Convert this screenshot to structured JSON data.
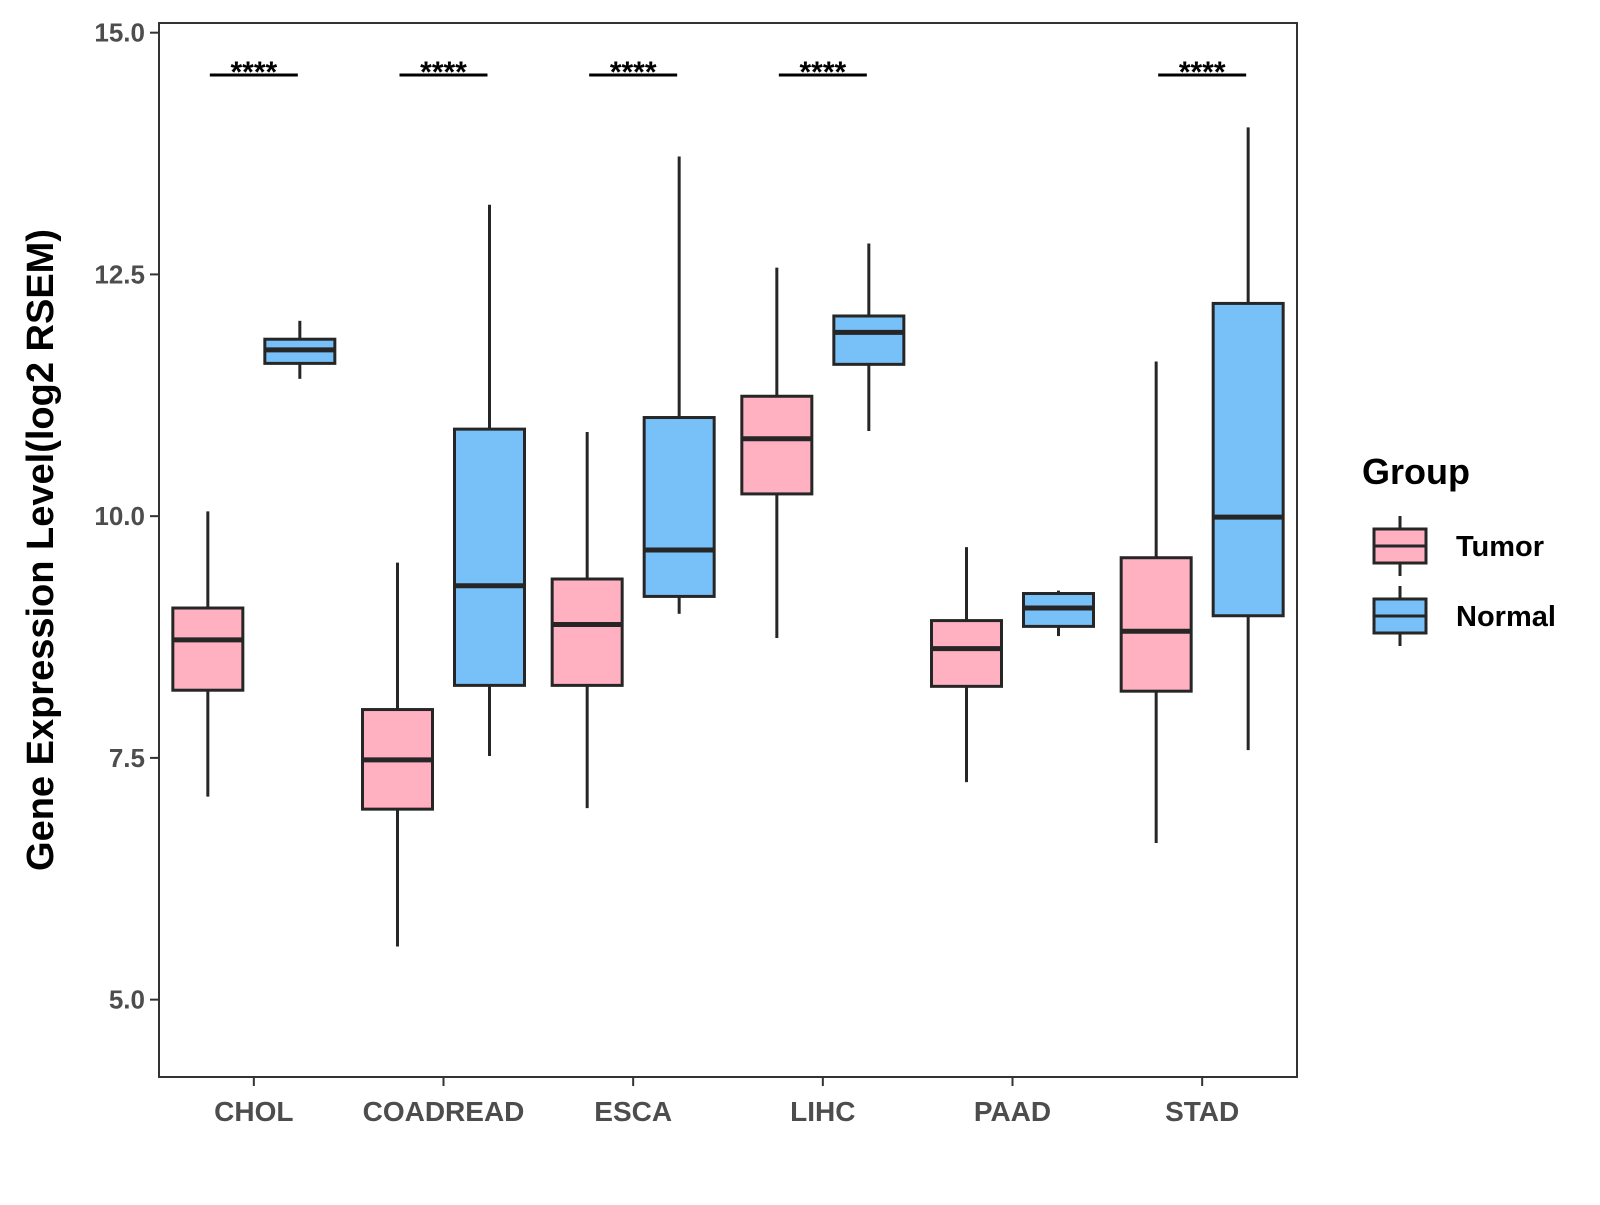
{
  "chart_data": {
    "type": "box",
    "title": "",
    "xlabel": "",
    "ylabel": "Gene Expression Level(log2 RSEM)",
    "ylim": [
      4.2,
      15.1
    ],
    "yticks": [
      5.0,
      7.5,
      10.0,
      12.5,
      15.0
    ],
    "ytick_labels": [
      "5.0",
      "7.5",
      "10.0",
      "12.5",
      "15.0"
    ],
    "grid": false,
    "categories": [
      "CHOL",
      "COADREAD",
      "ESCA",
      "LIHC",
      "PAAD",
      "STAD"
    ],
    "legend": {
      "title": "Group",
      "position": "right",
      "entries": [
        {
          "label": "Tumor",
          "color": "#FFB0C1"
        },
        {
          "label": "Normal",
          "color": "#78C0F8"
        }
      ]
    },
    "series": [
      {
        "name": "Tumor",
        "color": "#FFB0C1",
        "boxes": [
          {
            "category": "CHOL",
            "whisker_low": 7.1,
            "q1": 8.2,
            "median": 8.72,
            "q3": 9.05,
            "whisker_high": 10.05
          },
          {
            "category": "COADREAD",
            "whisker_low": 5.55,
            "q1": 6.97,
            "median": 7.48,
            "q3": 8.0,
            "whisker_high": 9.52
          },
          {
            "category": "ESCA",
            "whisker_low": 6.98,
            "q1": 8.25,
            "median": 8.88,
            "q3": 9.35,
            "whisker_high": 10.87
          },
          {
            "category": "LIHC",
            "whisker_low": 8.74,
            "q1": 10.23,
            "median": 10.8,
            "q3": 11.24,
            "whisker_high": 12.57
          },
          {
            "category": "PAAD",
            "whisker_low": 7.25,
            "q1": 8.24,
            "median": 8.63,
            "q3": 8.92,
            "whisker_high": 9.68
          },
          {
            "category": "STAD",
            "whisker_low": 6.62,
            "q1": 8.19,
            "median": 8.81,
            "q3": 9.57,
            "whisker_high": 11.6
          }
        ]
      },
      {
        "name": "Normal",
        "color": "#78C0F8",
        "boxes": [
          {
            "category": "CHOL",
            "whisker_low": 11.42,
            "q1": 11.58,
            "median": 11.72,
            "q3": 11.83,
            "whisker_high": 12.02
          },
          {
            "category": "COADREAD",
            "whisker_low": 7.52,
            "q1": 8.25,
            "median": 9.28,
            "q3": 10.9,
            "whisker_high": 13.22
          },
          {
            "category": "ESCA",
            "whisker_low": 8.99,
            "q1": 9.17,
            "median": 9.65,
            "q3": 11.02,
            "whisker_high": 13.72
          },
          {
            "category": "LIHC",
            "whisker_low": 10.88,
            "q1": 11.57,
            "median": 11.9,
            "q3": 12.07,
            "whisker_high": 12.82
          },
          {
            "category": "PAAD",
            "whisker_low": 8.76,
            "q1": 8.86,
            "median": 9.05,
            "q3": 9.2,
            "whisker_high": 9.23
          },
          {
            "category": "STAD",
            "whisker_low": 7.58,
            "q1": 8.97,
            "median": 9.99,
            "q3": 12.2,
            "whisker_high": 14.02
          }
        ]
      }
    ],
    "annotations": [
      {
        "category": "CHOL",
        "text": "****"
      },
      {
        "category": "COADREAD",
        "text": "****"
      },
      {
        "category": "ESCA",
        "text": "****"
      },
      {
        "category": "LIHC",
        "text": "****"
      },
      {
        "category": "STAD",
        "text": "****"
      }
    ]
  }
}
